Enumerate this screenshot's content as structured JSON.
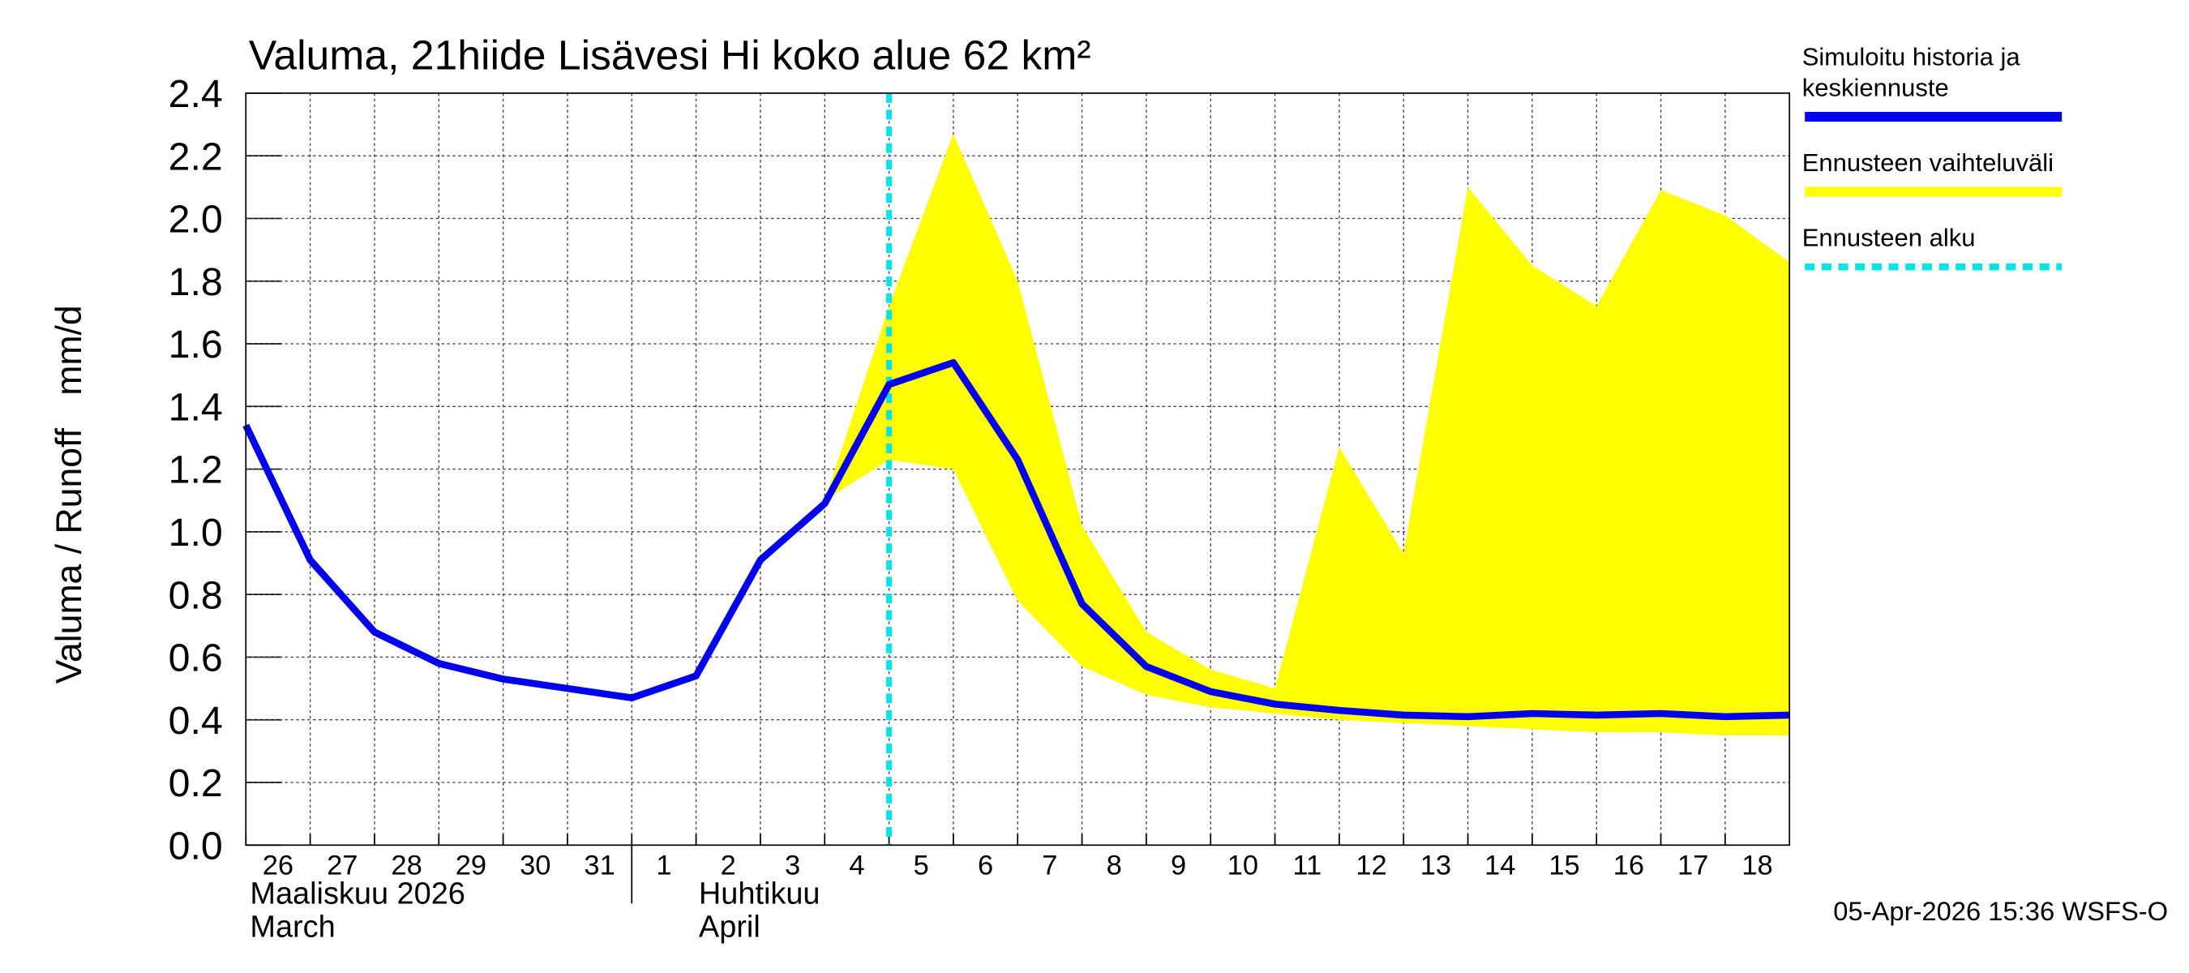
{
  "chart_data": {
    "type": "line",
    "title": "Valuma, 21hiide Lisävesi Hi koko alue 62 km²",
    "y_label": "Valuma / Runoff",
    "y_unit": "mm/d",
    "x": [
      "2026-03-26",
      "2026-03-27",
      "2026-03-28",
      "2026-03-29",
      "2026-03-30",
      "2026-03-31",
      "2026-04-01",
      "2026-04-02",
      "2026-04-03",
      "2026-04-04",
      "2026-04-05",
      "2026-04-06",
      "2026-04-07",
      "2026-04-08",
      "2026-04-09",
      "2026-04-10",
      "2026-04-11",
      "2026-04-12",
      "2026-04-13",
      "2026-04-14",
      "2026-04-15",
      "2026-04-16",
      "2026-04-17",
      "2026-04-18",
      "2026-04-19"
    ],
    "series": [
      {
        "name": "Ennusteen vaihteluväli",
        "color": "#ffff00",
        "kind": "band",
        "upper": [
          null,
          null,
          null,
          null,
          null,
          null,
          null,
          null,
          null,
          1.1,
          1.72,
          2.27,
          1.8,
          1.02,
          0.68,
          0.56,
          0.5,
          1.27,
          0.93,
          2.1,
          1.85,
          1.72,
          2.09,
          2.01,
          1.86
        ],
        "lower": [
          null,
          null,
          null,
          null,
          null,
          null,
          null,
          null,
          null,
          1.1,
          1.23,
          1.2,
          0.78,
          0.57,
          0.48,
          0.44,
          0.42,
          0.4,
          0.39,
          0.38,
          0.37,
          0.36,
          0.36,
          0.35,
          0.35
        ]
      },
      {
        "name": "Simuloitu historia ja keskiennuste",
        "color": "#0000ee",
        "kind": "line",
        "values": [
          1.34,
          0.91,
          0.68,
          0.58,
          0.53,
          0.5,
          0.47,
          0.54,
          0.91,
          1.09,
          1.47,
          1.54,
          1.23,
          0.77,
          0.57,
          0.49,
          0.45,
          0.43,
          0.415,
          0.41,
          0.42,
          0.415,
          0.42,
          0.41,
          0.415
        ]
      }
    ],
    "forecast_start": {
      "name": "Ennusteen alku",
      "color": "#00e5e5",
      "x": "2026-04-05"
    },
    "xlim": [
      "2026-03-26",
      "2026-04-19"
    ],
    "xticks": [
      {
        "value": "2026-03-26",
        "label": "26"
      },
      {
        "value": "2026-03-27",
        "label": "27"
      },
      {
        "value": "2026-03-28",
        "label": "28"
      },
      {
        "value": "2026-03-29",
        "label": "29"
      },
      {
        "value": "2026-03-30",
        "label": "30"
      },
      {
        "value": "2026-03-31",
        "label": "31"
      },
      {
        "value": "2026-04-01",
        "label": "1"
      },
      {
        "value": "2026-04-02",
        "label": "2"
      },
      {
        "value": "2026-04-03",
        "label": "3"
      },
      {
        "value": "2026-04-04",
        "label": "4"
      },
      {
        "value": "2026-04-05",
        "label": "5"
      },
      {
        "value": "2026-04-06",
        "label": "6"
      },
      {
        "value": "2026-04-07",
        "label": "7"
      },
      {
        "value": "2026-04-08",
        "label": "8"
      },
      {
        "value": "2026-04-09",
        "label": "9"
      },
      {
        "value": "2026-04-10",
        "label": "10"
      },
      {
        "value": "2026-04-11",
        "label": "11"
      },
      {
        "value": "2026-04-12",
        "label": "12"
      },
      {
        "value": "2026-04-13",
        "label": "13"
      },
      {
        "value": "2026-04-14",
        "label": "14"
      },
      {
        "value": "2026-04-15",
        "label": "15"
      },
      {
        "value": "2026-04-16",
        "label": "16"
      },
      {
        "value": "2026-04-17",
        "label": "17"
      },
      {
        "value": "2026-04-18",
        "label": "18"
      }
    ],
    "months": [
      {
        "value": "2026-03-26",
        "labels": [
          "Maaliskuu 2026",
          "March"
        ]
      },
      {
        "value": "2026-04-01",
        "labels": [
          "Huhtikuu",
          "April"
        ]
      }
    ],
    "ylim": [
      0,
      2.4
    ],
    "yticks": [
      {
        "value": 0,
        "label": "0.0"
      },
      0.2,
      0.4,
      0.6,
      0.8,
      {
        "value": 1,
        "label": "1.0"
      },
      1.2,
      1.4,
      1.6,
      1.8,
      {
        "value": 2,
        "label": "2.0"
      },
      2.2,
      2.4
    ],
    "grid": true,
    "footer": "05-Apr-2026 15:36 WSFS-O"
  }
}
